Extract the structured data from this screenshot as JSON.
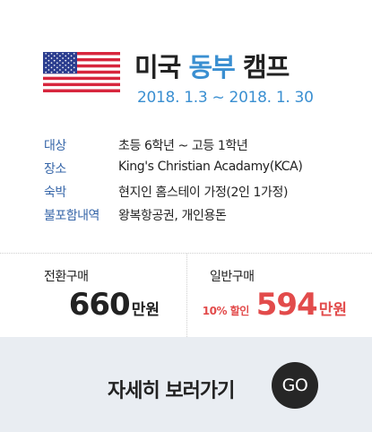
{
  "header": {
    "title_part1": "미국",
    "title_part2": "동부",
    "title_part3": "캠프",
    "dates": "2018. 1.3  ~ 2018. 1. 30",
    "flag_icon": "us-flag-icon"
  },
  "info": [
    {
      "label": "대상",
      "value": "초등 6학년 ~ 고등 1학년"
    },
    {
      "label": "장소",
      "value": "King's Christian Acadamy(KCA)"
    },
    {
      "label": "숙박",
      "value": "현지인 홈스테이 가정(2인 1가정)"
    },
    {
      "label": "불포함내역",
      "value": "왕복항공권, 개인용돈"
    }
  ],
  "prices": {
    "transfer_label": "전환구매",
    "transfer_price": "660",
    "transfer_unit": "만원",
    "general_label": "일반구매",
    "discount": "10% 할인",
    "general_price": "594",
    "general_unit": "만원"
  },
  "footer": {
    "more_label": "자세히 보러가기",
    "go_label": "GO"
  },
  "colors": {
    "accent": "#3a8fd1",
    "label": "#3565a8",
    "sale": "#e24b4b",
    "footer_bg": "#e9edf2"
  }
}
